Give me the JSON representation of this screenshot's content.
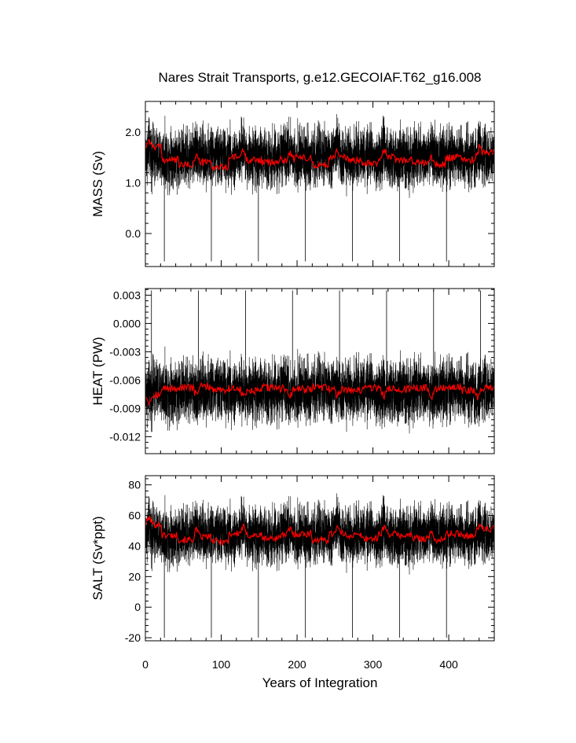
{
  "colors": {
    "raw": "#000000",
    "smooth": "#ff0000",
    "axes": "#000000"
  },
  "chart_data": {
    "type": "line",
    "title": "Nares Strait Transports, g.e12.GECOIAF.T62_g16.008",
    "xlabel": "Years of Integration",
    "xlim": [
      0,
      460
    ],
    "xticks": [
      0,
      100,
      200,
      300,
      400
    ],
    "xtick_labels": [
      "0",
      "100",
      "200",
      "300",
      "400"
    ],
    "cycle_years": 62,
    "panels": [
      {
        "id": "mass",
        "ylabel": "MASS (Sv)",
        "ylim": [
          -0.65,
          2.6
        ],
        "yticks": [
          0.0,
          1.0,
          2.0
        ],
        "ytick_labels": [
          "0.0",
          "1.0",
          "2.0"
        ],
        "series": [
          {
            "role": "raw",
            "mean": 1.5,
            "spread": 0.28,
            "spike_low": -0.55,
            "spike_years": [
              25,
              87,
              149,
              211,
              273,
              335,
              397
            ]
          },
          {
            "role": "smooth",
            "cycle_means": [
              1.7,
              1.45,
              1.35,
              1.4,
              1.3,
              1.5,
              1.45,
              1.4,
              1.45,
              1.5,
              1.35,
              1.5,
              1.45,
              1.4,
              1.5,
              1.45,
              1.4,
              1.35,
              1.5,
              1.45,
              1.6
            ]
          }
        ]
      },
      {
        "id": "heat",
        "ylabel": "HEAT (PW)",
        "ylim": [
          -0.0138,
          0.0037
        ],
        "yticks": [
          -0.012,
          -0.009,
          -0.006,
          -0.003,
          0.0,
          0.003
        ],
        "ytick_labels": [
          "-0.012",
          "-0.009",
          "-0.006",
          "-0.003",
          "0.000",
          "0.003"
        ],
        "series": [
          {
            "role": "raw",
            "mean": -0.0071,
            "spread": 0.0016,
            "spike_high": 0.0035,
            "spike_years": [
              8,
              70,
              132,
              194,
              256,
              318,
              380,
              442
            ]
          },
          {
            "role": "smooth",
            "cycle_means": [
              -0.0075,
              -0.0069,
              -0.0068,
              -0.0067,
              -0.007,
              -0.0069,
              -0.0072,
              -0.0068,
              -0.0069,
              -0.007,
              -0.0068,
              -0.0069,
              -0.0071,
              -0.0068,
              -0.0069,
              -0.007,
              -0.0068,
              -0.0069,
              -0.0067,
              -0.0071,
              -0.0068
            ]
          }
        ]
      },
      {
        "id": "salt",
        "ylabel": "SALT (Sv*ppt)",
        "ylim": [
          -22,
          86
        ],
        "yticks": [
          -20,
          0,
          20,
          40,
          60,
          80
        ],
        "ytick_labels": [
          "-20",
          "0",
          "20",
          "40",
          "60",
          "80"
        ],
        "series": [
          {
            "role": "raw",
            "mean": 47,
            "spread": 9,
            "spike_low": -20,
            "spike_years": [
              25,
              87,
              149,
              211,
              273,
              335,
              397
            ]
          },
          {
            "role": "smooth",
            "cycle_means": [
              54,
              47,
              44,
              46,
              43,
              48,
              47,
              45,
              47,
              48,
              44,
              48,
              47,
              45,
              48,
              47,
              45,
              44,
              48,
              47,
              51
            ]
          }
        ]
      }
    ]
  }
}
